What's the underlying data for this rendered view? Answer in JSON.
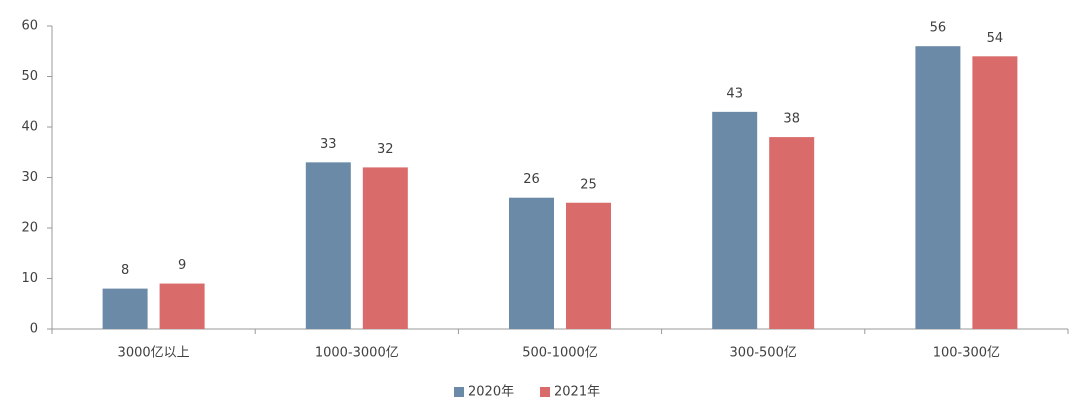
{
  "chart_data": {
    "type": "bar",
    "categories": [
      "3000亿以上",
      "1000-3000亿",
      "500-1000亿",
      "300-500亿",
      "100-300亿"
    ],
    "series": [
      {
        "name": "2020年",
        "color": "#6b8aa8",
        "values": [
          8,
          33,
          26,
          43,
          56
        ]
      },
      {
        "name": "2021年",
        "color": "#d96b6b",
        "values": [
          9,
          32,
          25,
          38,
          54
        ]
      }
    ],
    "ylim": [
      0,
      60
    ],
    "yticks": [
      0,
      10,
      20,
      30,
      40,
      50,
      60
    ],
    "grid": false,
    "legend": "bottom"
  }
}
